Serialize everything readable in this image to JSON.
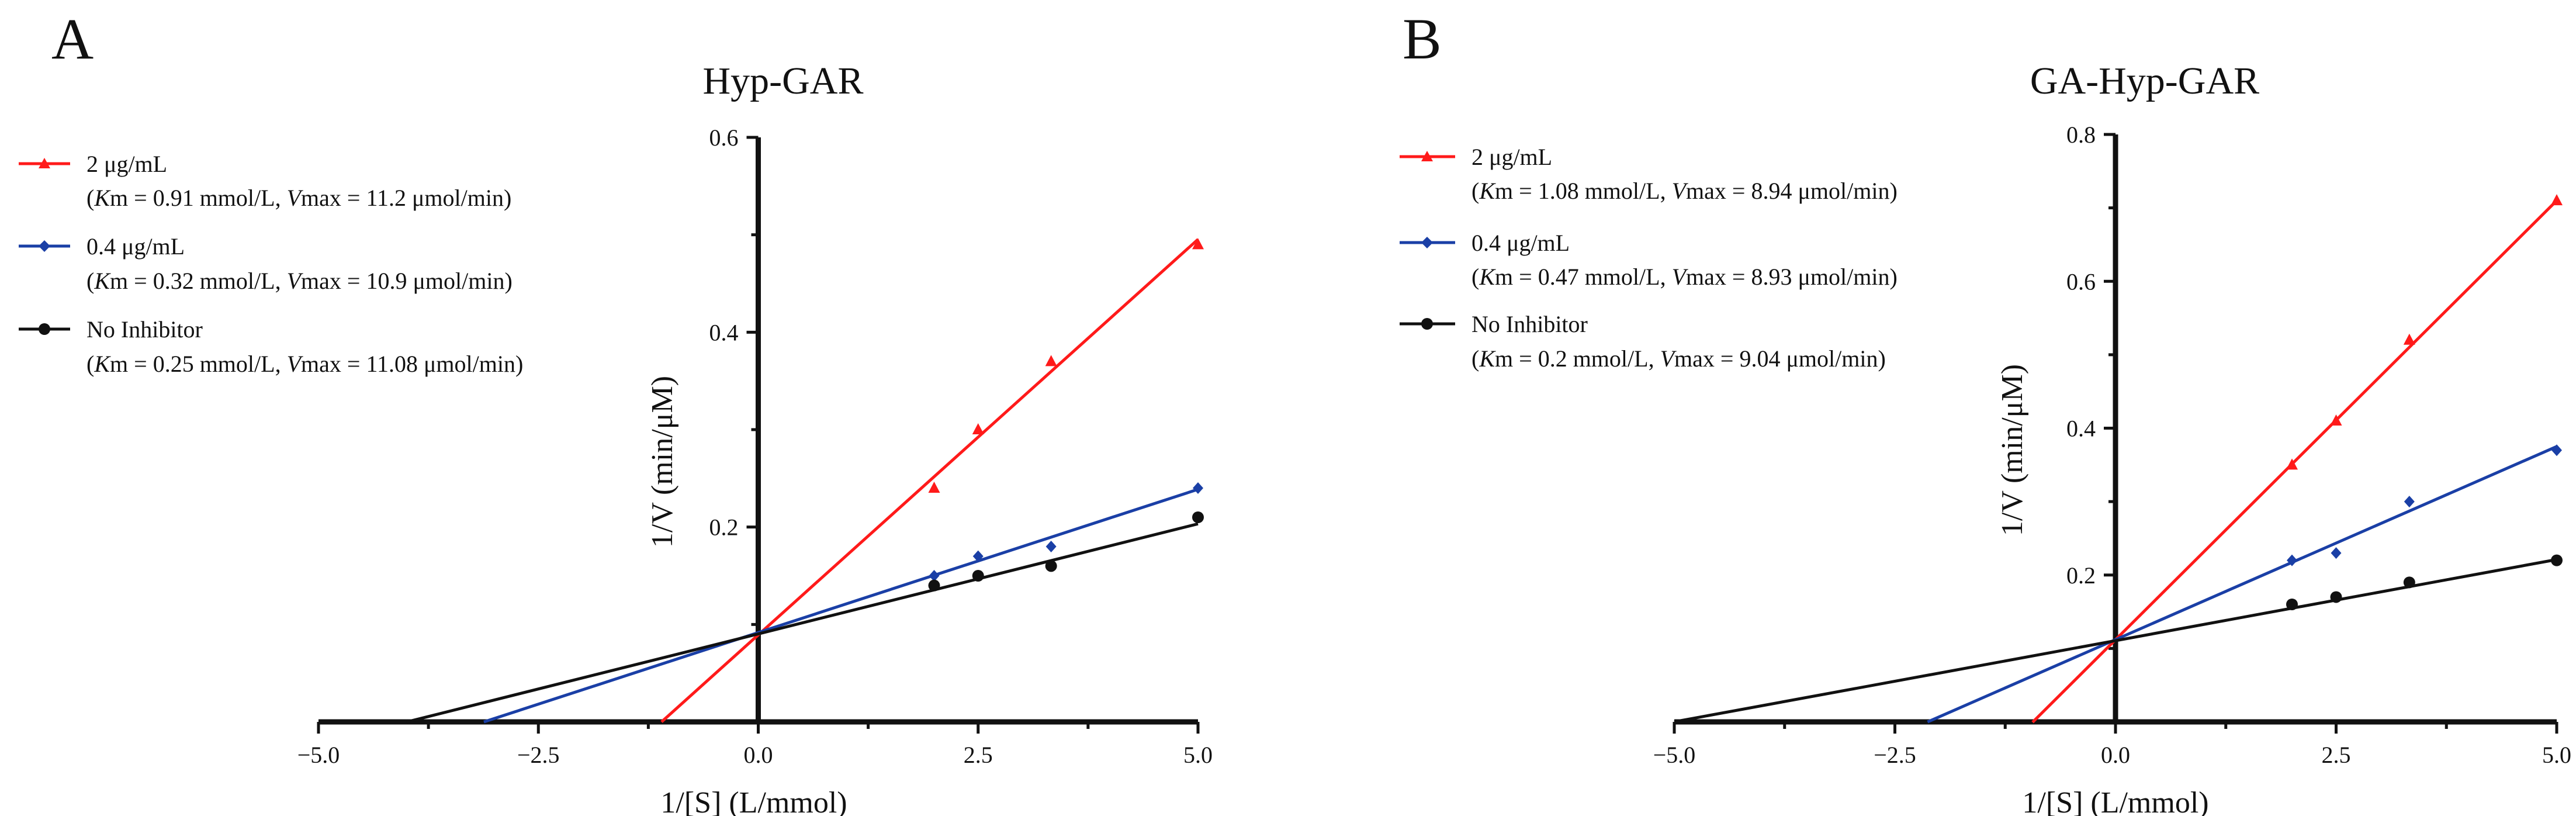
{
  "chart_data": [
    {
      "panel_label": "A",
      "type": "line",
      "title": "Hyp-GAR",
      "xlabel": "1/[S]  (L/mmol)",
      "ylabel": "1/V  (min/μM)",
      "xlim": [
        -5.0,
        5.0
      ],
      "ylim": [
        0,
        0.6
      ],
      "x_ticks": [
        "−5.0",
        "−2.5",
        "0.0",
        "2.5",
        "5.0"
      ],
      "x_tick_values": [
        -5.0,
        -2.5,
        0.0,
        2.5,
        5.0
      ],
      "y_ticks": [
        "0.2",
        "0.4",
        "0.6"
      ],
      "y_tick_values": [
        0.2,
        0.4,
        0.6
      ],
      "series": [
        {
          "name": "2 μg/mL",
          "kinetics": "(Km = 0.91 mmol/L, Vmax = 11.2 μmol/min)",
          "km_value": "0.91 mmol/L",
          "vmax_value": "11.2 μmol/min",
          "color": "#ff1a1a",
          "marker": "triangle",
          "points": [
            [
              2.0,
              0.24
            ],
            [
              2.5,
              0.3
            ],
            [
              3.33,
              0.37
            ],
            [
              5.0,
              0.49
            ]
          ],
          "line": {
            "slope": 0.0812,
            "intercept": 0.0893,
            "x_start": -1.1
          }
        },
        {
          "name": "0.4 μg/mL",
          "kinetics": "(Km = 0.32 mmol/L, Vmax = 10.9 μmol/min)",
          "km_value": "0.32 mmol/L",
          "vmax_value": "10.9 μmol/min",
          "color": "#1a3fa6",
          "marker": "diamond",
          "points": [
            [
              2.0,
              0.15
            ],
            [
              2.5,
              0.17
            ],
            [
              3.33,
              0.18
            ],
            [
              5.0,
              0.24
            ]
          ],
          "line": {
            "slope": 0.0294,
            "intercept": 0.0917,
            "x_start": -3.12
          }
        },
        {
          "name": "No Inhibitor",
          "kinetics": "(Km = 0.25 mmol/L, Vmax = 11.08 μmol/min)",
          "km_value": "0.25 mmol/L",
          "vmax_value": "11.08 μmol/min",
          "color": "#111111",
          "marker": "circle",
          "points": [
            [
              2.0,
              0.14
            ],
            [
              2.5,
              0.15
            ],
            [
              3.33,
              0.16
            ],
            [
              5.0,
              0.21
            ]
          ],
          "line": {
            "slope": 0.0226,
            "intercept": 0.0903,
            "x_start": -4.0
          }
        }
      ]
    },
    {
      "panel_label": "B",
      "type": "line",
      "title": "GA-Hyp-GAR",
      "xlabel": "1/[S]  (L/mmol)",
      "ylabel": "1/V  (min/μM)",
      "xlim": [
        -5.0,
        5.0
      ],
      "ylim": [
        0,
        0.8
      ],
      "x_ticks": [
        "−5.0",
        "−2.5",
        "0.0",
        "2.5",
        "5.0"
      ],
      "x_tick_values": [
        -5.0,
        -2.5,
        0.0,
        2.5,
        5.0
      ],
      "y_ticks": [
        "0.2",
        "0.4",
        "0.6",
        "0.8"
      ],
      "y_tick_values": [
        0.2,
        0.4,
        0.6,
        0.8
      ],
      "series": [
        {
          "name": "2 μg/mL",
          "kinetics": "(Km = 1.08 mmol/L, Vmax = 8.94 μmol/min)",
          "km_value": "1.08 mmol/L",
          "vmax_value": "8.94 μmol/min",
          "color": "#ff1a1a",
          "marker": "triangle",
          "points": [
            [
              2.0,
              0.35
            ],
            [
              2.5,
              0.41
            ],
            [
              3.33,
              0.52
            ],
            [
              5.0,
              0.71
            ]
          ],
          "line": {
            "slope": 0.1196,
            "intercept": 0.1119,
            "x_start": -0.94
          }
        },
        {
          "name": "0.4 μg/mL",
          "kinetics": "(Km = 0.47 mmol/L, Vmax = 8.93 μmol/min)",
          "km_value": "0.47 mmol/L",
          "vmax_value": "8.93 μmol/min",
          "color": "#1a3fa6",
          "marker": "diamond",
          "points": [
            [
              2.0,
              0.22
            ],
            [
              2.5,
              0.23
            ],
            [
              3.33,
              0.3
            ],
            [
              5.0,
              0.37
            ]
          ],
          "line": {
            "slope": 0.0526,
            "intercept": 0.112,
            "x_start": -2.13
          }
        },
        {
          "name": "No Inhibitor",
          "kinetics": "(Km = 0.2 mmol/L, Vmax = 9.04 μmol/min)",
          "km_value": "0.2 mmol/L",
          "vmax_value": "9.04 μmol/min",
          "color": "#111111",
          "marker": "circle",
          "points": [
            [
              2.0,
              0.16
            ],
            [
              2.5,
              0.17
            ],
            [
              3.33,
              0.19
            ],
            [
              5.0,
              0.22
            ]
          ],
          "line": {
            "slope": 0.0221,
            "intercept": 0.1106,
            "x_start": -5.0
          }
        }
      ]
    }
  ]
}
